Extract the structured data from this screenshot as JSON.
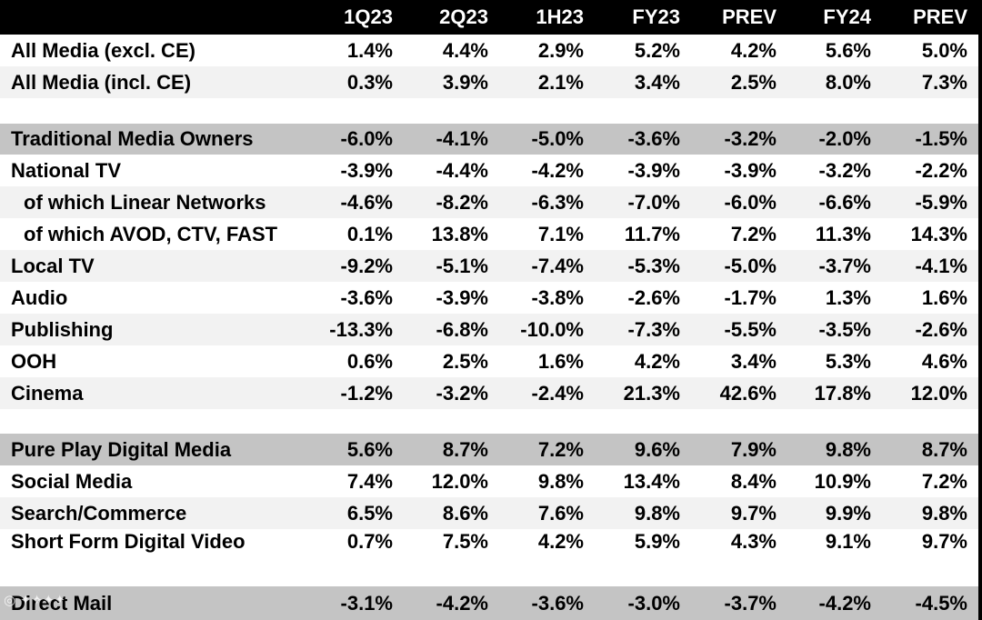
{
  "header": {
    "label": "",
    "columns": [
      "1Q23",
      "2Q23",
      "1H23",
      "FY23",
      "PREV",
      "FY24",
      "PREV"
    ]
  },
  "rows": [
    {
      "label": "All Media (excl. CE)",
      "values": [
        "1.4%",
        "4.4%",
        "2.9%",
        "5.2%",
        "4.2%",
        "5.6%",
        "5.0%"
      ],
      "style": "plain"
    },
    {
      "label": "All Media (incl. CE)",
      "values": [
        "0.3%",
        "3.9%",
        "2.1%",
        "3.4%",
        "2.5%",
        "8.0%",
        "7.3%"
      ],
      "style": "alt"
    },
    {
      "label": "",
      "values": [
        "",
        "",
        "",
        "",
        "",
        "",
        ""
      ],
      "style": "spacer"
    },
    {
      "label": "Traditional Media Owners",
      "values": [
        "-6.0%",
        "-4.1%",
        "-5.0%",
        "-3.6%",
        "-3.2%",
        "-2.0%",
        "-1.5%"
      ],
      "style": "section"
    },
    {
      "label": "National TV",
      "values": [
        "-3.9%",
        "-4.4%",
        "-4.2%",
        "-3.9%",
        "-3.9%",
        "-3.2%",
        "-2.2%"
      ],
      "style": "plain"
    },
    {
      "label": "of which Linear Networks",
      "values": [
        "-4.6%",
        "-8.2%",
        "-6.3%",
        "-7.0%",
        "-6.0%",
        "-6.6%",
        "-5.9%"
      ],
      "style": "alt",
      "indent": true
    },
    {
      "label": "of which AVOD, CTV, FAST",
      "values": [
        "0.1%",
        "13.8%",
        "7.1%",
        "11.7%",
        "7.2%",
        "11.3%",
        "14.3%"
      ],
      "style": "plain",
      "indent": true
    },
    {
      "label": "Local TV",
      "values": [
        "-9.2%",
        "-5.1%",
        "-7.4%",
        "-5.3%",
        "-5.0%",
        "-3.7%",
        "-4.1%"
      ],
      "style": "alt"
    },
    {
      "label": "Audio",
      "values": [
        "-3.6%",
        "-3.9%",
        "-3.8%",
        "-2.6%",
        "-1.7%",
        "1.3%",
        "1.6%"
      ],
      "style": "plain"
    },
    {
      "label": "Publishing",
      "values": [
        "-13.3%",
        "-6.8%",
        "-10.0%",
        "-7.3%",
        "-5.5%",
        "-3.5%",
        "-2.6%"
      ],
      "style": "alt"
    },
    {
      "label": "OOH",
      "values": [
        "0.6%",
        "2.5%",
        "1.6%",
        "4.2%",
        "3.4%",
        "5.3%",
        "4.6%"
      ],
      "style": "plain"
    },
    {
      "label": "Cinema",
      "values": [
        "-1.2%",
        "-3.2%",
        "-2.4%",
        "21.3%",
        "42.6%",
        "17.8%",
        "12.0%"
      ],
      "style": "alt"
    },
    {
      "label": "",
      "values": [
        "",
        "",
        "",
        "",
        "",
        "",
        ""
      ],
      "style": "spacer"
    },
    {
      "label": "Pure Play Digital Media",
      "values": [
        "5.6%",
        "8.7%",
        "7.2%",
        "9.6%",
        "7.9%",
        "9.8%",
        "8.7%"
      ],
      "style": "section"
    },
    {
      "label": "Social Media",
      "values": [
        "7.4%",
        "12.0%",
        "9.8%",
        "13.4%",
        "8.4%",
        "10.9%",
        "7.2%"
      ],
      "style": "plain"
    },
    {
      "label": "Search/Commerce",
      "values": [
        "6.5%",
        "8.6%",
        "7.6%",
        "9.8%",
        "9.7%",
        "9.9%",
        "9.8%"
      ],
      "style": "alt"
    },
    {
      "label": "Short Form Digital Video",
      "values": [
        "0.7%",
        "7.5%",
        "4.2%",
        "5.9%",
        "4.3%",
        "9.1%",
        "9.7%"
      ],
      "style": "plain"
    },
    {
      "label": "",
      "values": [
        "",
        "",
        "",
        "",
        "",
        "",
        ""
      ],
      "style": "spacer"
    },
    {
      "label": "Direct Mail",
      "values": [
        "-3.1%",
        "-4.2%",
        "-3.6%",
        "-3.0%",
        "-3.7%",
        "-4.2%",
        "-4.5%"
      ],
      "style": "section"
    }
  ],
  "colors": {
    "header_bg": "#000000",
    "header_text": "#ffffff",
    "section_bg": "#c4c4c4",
    "alt_bg": "#f2f2f2"
  }
}
